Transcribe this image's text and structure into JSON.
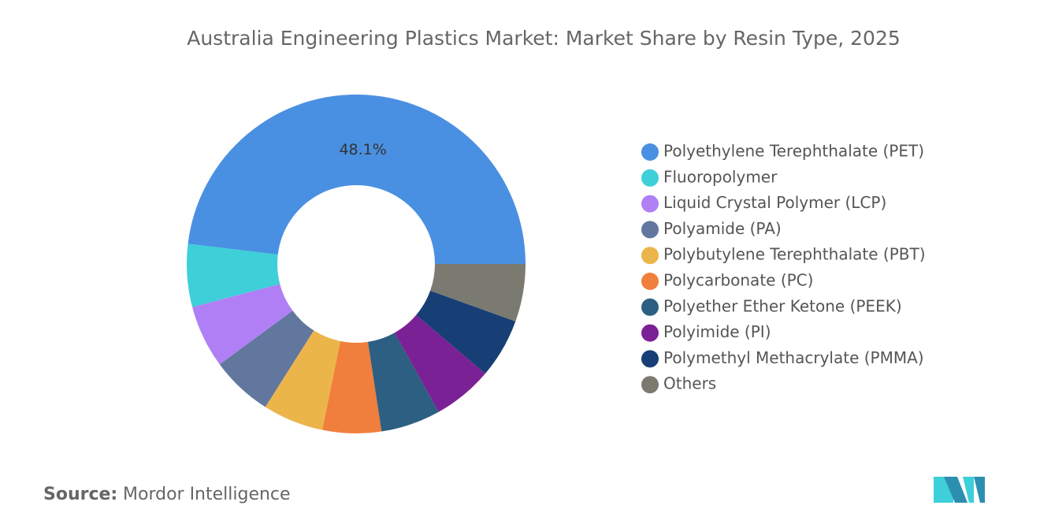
{
  "chart_data": {
    "type": "donut",
    "title": "Australia Engineering Plastics Market: Market Share by Resin Type, 2025",
    "categories": [
      "Polyethylene Terephthalate (PET)",
      "Fluoropolymer",
      "Liquid Crystal Polymer (LCP)",
      "Polyamide (PA)",
      "Polybutylene Terephthalate (PBT)",
      "Polycarbonate (PC)",
      "Polyether Ether Ketone (PEEK)",
      "Polyimide (PI)",
      "Polymethyl Methacrylate (PMMA)",
      "Others"
    ],
    "values": [
      48.1,
      6.0,
      6.0,
      5.9,
      5.8,
      5.6,
      5.7,
      5.7,
      5.7,
      5.5
    ],
    "value_labels": [
      "48.1%",
      null,
      null,
      null,
      null,
      null,
      null,
      null,
      null,
      null
    ],
    "colors": [
      "#4a90e2",
      "#3ecfd9",
      "#b07ff5",
      "#62779e",
      "#ecb54a",
      "#f07e3c",
      "#2c5f82",
      "#7b2196",
      "#173f75",
      "#7a7a70"
    ],
    "legend": "right",
    "source_label": "Source:",
    "source": "Mordor Intelligence"
  }
}
